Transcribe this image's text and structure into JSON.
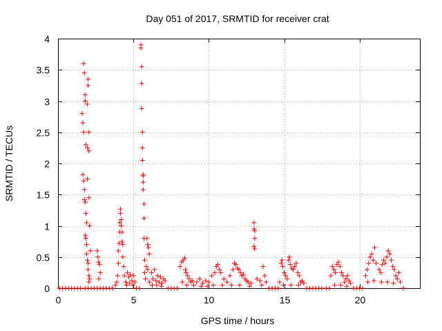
{
  "chart_data": {
    "type": "scatter",
    "title": "Day 051 of 2017, SRMTID for receiver crat",
    "xlabel": "GPS time / hours",
    "ylabel": "SRMTID / TECUs",
    "xlim": [
      0,
      24
    ],
    "ylim": [
      0,
      4
    ],
    "xticks": [
      0,
      5,
      10,
      15,
      20
    ],
    "xtick_labels": [
      "0",
      "5",
      "10",
      "15",
      "20"
    ],
    "yticks": [
      0,
      0.5,
      1,
      1.5,
      2,
      2.5,
      3,
      3.5,
      4
    ],
    "ytick_labels": [
      "0",
      "0.5",
      "1",
      "1.5",
      "2",
      "2.5",
      "3",
      "3.5",
      "4"
    ],
    "grid": true,
    "marker": "+",
    "color": "#ff0000",
    "series": [
      {
        "name": "SRMTID",
        "points": [
          [
            0.1,
            0
          ],
          [
            0.3,
            0
          ],
          [
            0.5,
            0
          ],
          [
            0.7,
            0
          ],
          [
            0.9,
            0
          ],
          [
            1.1,
            0
          ],
          [
            1.3,
            0
          ],
          [
            1.5,
            0
          ],
          [
            1.6,
            2.8
          ],
          [
            1.65,
            2.65
          ],
          [
            1.7,
            2.5
          ],
          [
            1.7,
            3.6
          ],
          [
            1.75,
            3.45
          ],
          [
            1.8,
            3.1
          ],
          [
            1.8,
            3.0
          ],
          [
            1.85,
            2.3
          ],
          [
            1.65,
            1.82
          ],
          [
            1.7,
            1.72
          ],
          [
            1.75,
            1.58
          ],
          [
            1.75,
            1.42
          ],
          [
            1.8,
            1.38
          ],
          [
            1.85,
            1.2
          ],
          [
            1.9,
            1.05
          ],
          [
            1.8,
            0.85
          ],
          [
            1.85,
            0.8
          ],
          [
            1.9,
            0.7
          ],
          [
            1.9,
            0.55
          ],
          [
            1.95,
            0.45
          ],
          [
            2.0,
            0.4
          ],
          [
            2.0,
            0.3
          ],
          [
            2.05,
            0.2
          ],
          [
            2.05,
            0.1
          ],
          [
            1.95,
            2.95
          ],
          [
            2.0,
            3.35
          ],
          [
            2.0,
            3.25
          ],
          [
            2.05,
            2.5
          ],
          [
            1.95,
            2.25
          ],
          [
            2.05,
            2.2
          ],
          [
            1.95,
            1.75
          ],
          [
            2.05,
            1.45
          ],
          [
            2.1,
            1.0
          ],
          [
            2.15,
            0.6
          ],
          [
            2.1,
            0.15
          ],
          [
            1.8,
            0
          ],
          [
            2.0,
            0
          ],
          [
            2.2,
            0
          ],
          [
            2.4,
            0
          ],
          [
            2.6,
            0
          ],
          [
            2.8,
            0
          ],
          [
            3.0,
            0
          ],
          [
            3.2,
            0
          ],
          [
            3.4,
            0
          ],
          [
            3.6,
            0
          ],
          [
            2.6,
            0.6
          ],
          [
            2.65,
            0.5
          ],
          [
            2.7,
            0.42
          ],
          [
            2.75,
            0.38
          ],
          [
            2.8,
            0.25
          ],
          [
            2.7,
            0.15
          ],
          [
            3.8,
            0.05
          ],
          [
            3.9,
            0.1
          ],
          [
            3.95,
            0.2
          ],
          [
            4.0,
            0.4
          ],
          [
            4.0,
            0.6
          ],
          [
            4.05,
            0.72
          ],
          [
            4.1,
            0.9
          ],
          [
            4.1,
            1.05
          ],
          [
            4.15,
            1.2
          ],
          [
            4.15,
            1.27
          ],
          [
            4.2,
            1.1
          ],
          [
            4.2,
            1.0
          ],
          [
            4.25,
            0.9
          ],
          [
            4.25,
            0.75
          ],
          [
            4.3,
            0.7
          ],
          [
            4.3,
            0.5
          ],
          [
            4.35,
            0.35
          ],
          [
            4.4,
            0.2
          ],
          [
            4.5,
            0.1
          ],
          [
            4.6,
            0.25
          ],
          [
            4.7,
            0.18
          ],
          [
            4.8,
            0.22
          ],
          [
            4.9,
            0.12
          ],
          [
            5.0,
            0.2
          ],
          [
            5.1,
            0.1
          ],
          [
            4.55,
            0.05
          ],
          [
            4.75,
            0.08
          ],
          [
            4.95,
            0.05
          ],
          [
            5.2,
            0
          ],
          [
            5.4,
            0
          ],
          [
            5.5,
            3.85
          ],
          [
            5.5,
            3.9
          ],
          [
            5.55,
            3.55
          ],
          [
            5.55,
            3.28
          ],
          [
            5.55,
            2.88
          ],
          [
            5.6,
            2.5
          ],
          [
            5.6,
            2.25
          ],
          [
            5.6,
            2.05
          ],
          [
            5.65,
            1.82
          ],
          [
            5.65,
            1.8
          ],
          [
            5.65,
            1.7
          ],
          [
            5.65,
            1.58
          ],
          [
            5.7,
            1.35
          ],
          [
            5.7,
            1.12
          ],
          [
            5.7,
            0.8
          ],
          [
            5.75,
            0.45
          ],
          [
            5.75,
            0.25
          ],
          [
            5.8,
            0.15
          ],
          [
            5.9,
            0.8
          ],
          [
            5.95,
            0.7
          ],
          [
            6.0,
            0.65
          ],
          [
            6.05,
            0.55
          ],
          [
            5.85,
            0.35
          ],
          [
            5.95,
            0.3
          ],
          [
            6.05,
            0.1
          ],
          [
            6.2,
            0.25
          ],
          [
            6.3,
            0.15
          ],
          [
            6.4,
            0.3
          ],
          [
            6.5,
            0.12
          ],
          [
            6.6,
            0.2
          ],
          [
            6.7,
            0.1
          ],
          [
            6.8,
            0.18
          ],
          [
            6.9,
            0.08
          ],
          [
            7.0,
            0.15
          ],
          [
            7.1,
            0.12
          ],
          [
            6.25,
            0.05
          ],
          [
            6.55,
            0.05
          ],
          [
            6.85,
            0.03
          ],
          [
            7.3,
            0
          ],
          [
            7.5,
            0
          ],
          [
            7.7,
            0
          ],
          [
            7.9,
            0
          ],
          [
            8.1,
            0.35
          ],
          [
            8.2,
            0.42
          ],
          [
            8.3,
            0.45
          ],
          [
            8.4,
            0.48
          ],
          [
            8.45,
            0.3
          ],
          [
            8.5,
            0.25
          ],
          [
            8.6,
            0.2
          ],
          [
            8.7,
            0.15
          ],
          [
            8.8,
            0.1
          ],
          [
            8.9,
            0.12
          ],
          [
            9.0,
            0.05
          ],
          [
            8.25,
            0.1
          ],
          [
            8.55,
            0.05
          ],
          [
            9.2,
            0.1
          ],
          [
            9.4,
            0.15
          ],
          [
            9.6,
            0.08
          ],
          [
            9.8,
            0.12
          ],
          [
            10.0,
            0.1
          ],
          [
            10.2,
            0.2
          ],
          [
            10.4,
            0.25
          ],
          [
            10.5,
            0.35
          ],
          [
            10.6,
            0.38
          ],
          [
            10.7,
            0.3
          ],
          [
            10.8,
            0.25
          ],
          [
            11.0,
            0.15
          ],
          [
            11.2,
            0.1
          ],
          [
            9.5,
            0.03
          ],
          [
            9.9,
            0.03
          ],
          [
            10.3,
            0.05
          ],
          [
            10.9,
            0.05
          ],
          [
            11.4,
            0.2
          ],
          [
            11.6,
            0.3
          ],
          [
            11.7,
            0.4
          ],
          [
            11.8,
            0.38
          ],
          [
            11.9,
            0.32
          ],
          [
            12.0,
            0.3
          ],
          [
            12.1,
            0.25
          ],
          [
            12.2,
            0.2
          ],
          [
            12.3,
            0.22
          ],
          [
            12.4,
            0.15
          ],
          [
            12.5,
            0.12
          ],
          [
            12.6,
            0.1
          ],
          [
            12.8,
            0.08
          ],
          [
            11.5,
            0.05
          ],
          [
            12.05,
            0.05
          ],
          [
            12.7,
            0.03
          ],
          [
            13.0,
            1.05
          ],
          [
            13.0,
            0.95
          ],
          [
            13.05,
            0.92
          ],
          [
            13.05,
            0.8
          ],
          [
            13.0,
            0.67
          ],
          [
            13.05,
            0.63
          ],
          [
            13.2,
            0.15
          ],
          [
            13.4,
            0.12
          ],
          [
            13.6,
            0.35
          ],
          [
            13.7,
            0.2
          ],
          [
            13.8,
            0.1
          ],
          [
            13.5,
            0.05
          ],
          [
            14.0,
            0
          ],
          [
            14.2,
            0
          ],
          [
            14.4,
            0
          ],
          [
            14.6,
            0
          ],
          [
            14.7,
            0.1
          ],
          [
            14.8,
            0.4
          ],
          [
            14.85,
            0.45
          ],
          [
            14.9,
            0.35
          ],
          [
            15.0,
            0.25
          ],
          [
            15.1,
            0.2
          ],
          [
            15.2,
            0.15
          ],
          [
            15.3,
            0.45
          ],
          [
            15.35,
            0.5
          ],
          [
            15.4,
            0.38
          ],
          [
            15.5,
            0.32
          ],
          [
            15.6,
            0.3
          ],
          [
            15.7,
            0.35
          ],
          [
            15.8,
            0.4
          ],
          [
            15.9,
            0.25
          ],
          [
            16.0,
            0.2
          ],
          [
            16.1,
            0.1
          ],
          [
            16.2,
            0.12
          ],
          [
            16.3,
            0.08
          ],
          [
            14.95,
            0.05
          ],
          [
            15.45,
            0.05
          ],
          [
            15.95,
            0.05
          ],
          [
            16.5,
            0
          ],
          [
            16.7,
            0
          ],
          [
            16.9,
            0
          ],
          [
            17.1,
            0
          ],
          [
            17.3,
            0
          ],
          [
            17.5,
            0
          ],
          [
            17.8,
            0
          ],
          [
            18.0,
            0
          ],
          [
            18.1,
            0.2
          ],
          [
            18.2,
            0.35
          ],
          [
            18.3,
            0.3
          ],
          [
            18.4,
            0.25
          ],
          [
            18.5,
            0.38
          ],
          [
            18.6,
            0.42
          ],
          [
            18.7,
            0.35
          ],
          [
            18.8,
            0.25
          ],
          [
            18.9,
            0.2
          ],
          [
            19.0,
            0.1
          ],
          [
            19.1,
            0.15
          ],
          [
            19.2,
            0.2
          ],
          [
            19.3,
            0.12
          ],
          [
            19.4,
            0.08
          ],
          [
            18.35,
            0.05
          ],
          [
            18.75,
            0.05
          ],
          [
            19.15,
            0.03
          ],
          [
            19.6,
            0
          ],
          [
            19.8,
            0
          ],
          [
            20.0,
            0
          ],
          [
            20.2,
            0
          ],
          [
            20.4,
            0.2
          ],
          [
            20.5,
            0.3
          ],
          [
            20.6,
            0.4
          ],
          [
            20.7,
            0.5
          ],
          [
            20.8,
            0.55
          ],
          [
            20.9,
            0.45
          ],
          [
            21.0,
            0.65
          ],
          [
            21.1,
            0.4
          ],
          [
            20.55,
            0.1
          ],
          [
            20.95,
            0.12
          ],
          [
            21.3,
            0.3
          ],
          [
            21.4,
            0.25
          ],
          [
            21.5,
            0.38
          ],
          [
            21.6,
            0.45
          ],
          [
            21.7,
            0.4
          ],
          [
            21.8,
            0.5
          ],
          [
            21.9,
            0.6
          ],
          [
            22.0,
            0.55
          ],
          [
            22.1,
            0.45
          ],
          [
            22.2,
            0.35
          ],
          [
            22.3,
            0.3
          ],
          [
            22.4,
            0.2
          ],
          [
            22.5,
            0.15
          ],
          [
            22.6,
            0.25
          ],
          [
            22.7,
            0.1
          ],
          [
            21.45,
            0.1
          ],
          [
            21.85,
            0.1
          ],
          [
            22.25,
            0.08
          ],
          [
            22.9,
            0
          ]
        ]
      }
    ]
  }
}
